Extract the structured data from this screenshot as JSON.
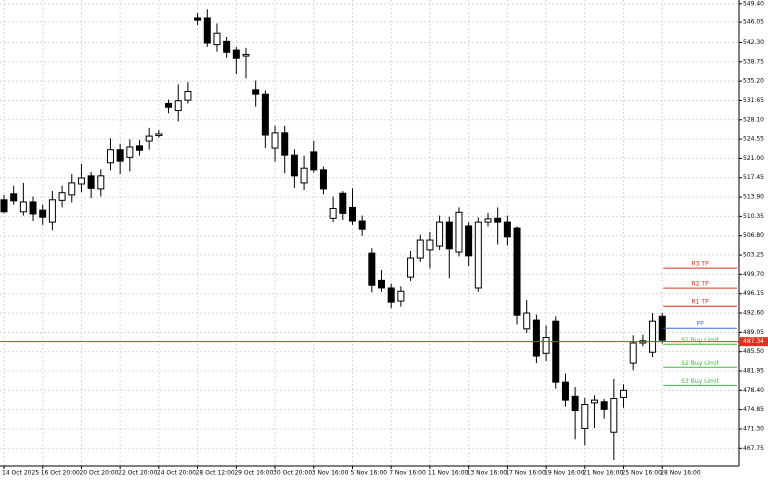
{
  "chart_data": {
    "type": "candlestick",
    "ylim": [
      464.5,
      550.1
    ],
    "yticks": [
      {
        "value": 549.4,
        "label": "549.40"
      },
      546.05,
      {
        "value": 542.3,
        "label": "542.30"
      },
      538.75,
      {
        "value": 535.2,
        "label": "535.20"
      },
      531.65,
      {
        "value": 528.1,
        "label": "528.10"
      },
      524.55,
      {
        "value": 521,
        "label": "521.00"
      },
      517.45,
      {
        "value": 513.9,
        "label": "513.90"
      },
      510.35,
      {
        "value": 506.8,
        "label": "506.80"
      },
      503.25,
      {
        "value": 499.7,
        "label": "499.70"
      },
      496.15,
      {
        "value": 492.6,
        "label": "492.60"
      },
      489.05,
      {
        "value": 485.5,
        "label": "485.50"
      },
      481.95,
      {
        "value": 478.4,
        "label": "478.40"
      },
      474.85,
      {
        "value": 471.3,
        "label": "471.30"
      },
      467.75
    ],
    "grid": true,
    "up_color": "#ffffff",
    "down_color": "#000000",
    "categories": [
      "14 Oct 2025",
      null,
      null,
      null,
      "16 Oct 20:00",
      null,
      null,
      null,
      "20 Oct 20:00",
      null,
      null,
      null,
      "22 Oct 20:00",
      null,
      null,
      null,
      "24 Oct 20:00",
      null,
      null,
      null,
      "28 Oct 12:00",
      null,
      null,
      null,
      "29 Oct 16:00",
      null,
      null,
      null,
      "30 Oct 20:00",
      null,
      null,
      null,
      "3 Nov 16:00",
      null,
      null,
      null,
      "5 Nov 16:00",
      null,
      null,
      null,
      "7 Nov 16:00",
      null,
      null,
      null,
      "11 Nov 16:00",
      null,
      null,
      null,
      "13 Nov 16:00",
      null,
      null,
      null,
      "17 Nov 16:00",
      null,
      null,
      null,
      "19 Nov 16:00",
      null,
      null,
      null,
      "21 Nov 16:00",
      null,
      null,
      null,
      "25 Nov 16:00",
      null,
      null,
      null,
      "28 Nov 16:00"
    ],
    "open": [
      513.4,
      514.5,
      511.2,
      513,
      511.5,
      509.3,
      513.3,
      514.3,
      516.3,
      517.8,
      515.4,
      520.2,
      522.6,
      521.2,
      523.3,
      524.2,
      525.2,
      531.1,
      529.8,
      531.7,
      546.8,
      546.8,
      541.9,
      542.5,
      540.9,
      539.8,
      533.6,
      532.8,
      522.9,
      525.7,
      521.6,
      516.5,
      522.2,
      518.9,
      510,
      514.6,
      512,
      509.5,
      503.6,
      498.6,
      497.2,
      494.8,
      499.2,
      502.7,
      504.2,
      504.9,
      509.3,
      503.8,
      508.6,
      497.2,
      509.3,
      510,
      509.3,
      508.2,
      489.7,
      491.3,
      485.2,
      491.1,
      479.9,
      477.3,
      471.4,
      476.1,
      476.3,
      470.7,
      477.1,
      483.4,
      487.1,
      485.4,
      492
    ],
    "high": [
      514.3,
      516,
      516.5,
      514,
      512.5,
      515,
      516,
      518.1,
      520,
      518.5,
      519,
      524.7,
      523.7,
      524.5,
      524.4,
      526.6,
      526.2,
      531.8,
      534.6,
      535,
      547.7,
      548.4,
      545.8,
      543.3,
      541.5,
      541.3,
      535.3,
      533.5,
      527,
      527,
      522.7,
      521.5,
      524.2,
      519.5,
      514,
      515,
      515.5,
      510.5,
      504.5,
      500.5,
      498,
      497.5,
      504,
      507,
      507.5,
      510.5,
      510.3,
      512,
      509.3,
      510.2,
      511,
      512,
      510.5,
      508.5,
      495,
      492.3,
      490.3,
      492,
      481.5,
      479,
      477,
      477.5,
      476.8,
      480.5,
      479.5,
      488.5,
      488.6,
      492.6,
      492.6
    ],
    "low": [
      510.9,
      512.5,
      510.5,
      509.5,
      508.8,
      507.8,
      512,
      512.9,
      514.8,
      513.7,
      514,
      518.8,
      518.1,
      518.6,
      521.5,
      522.6,
      524.8,
      529.3,
      527.8,
      531.1,
      545.5,
      541.5,
      540.6,
      539.5,
      536.5,
      535.7,
      530.5,
      522.9,
      520.4,
      518.3,
      515.6,
      515.2,
      518.4,
      514.4,
      509.3,
      509.7,
      508.8,
      506.8,
      496.4,
      496.5,
      493.5,
      493.8,
      498.5,
      502,
      500.8,
      504.2,
      499,
      503,
      501.2,
      496.5,
      508.5,
      505.2,
      505,
      490.5,
      488.9,
      483.4,
      483.8,
      478.7,
      475.4,
      469.4,
      468.3,
      471.5,
      473.2,
      465.6,
      475.2,
      482.1,
      486.5,
      484.5,
      487
    ],
    "close": [
      511.2,
      513.2,
      513,
      510.8,
      510.2,
      513.4,
      514.7,
      516.5,
      517.4,
      515.5,
      517.8,
      522.6,
      520.5,
      523.1,
      522.5,
      525.1,
      525.5,
      530.4,
      531.6,
      533.3,
      546.4,
      542.2,
      544,
      540.5,
      539.4,
      540.1,
      532.8,
      525.3,
      525.7,
      521.6,
      517.8,
      519.2,
      518.9,
      515.4,
      511.8,
      510.9,
      509.5,
      508,
      497.7,
      497.2,
      494.6,
      496.6,
      502.7,
      506,
      506,
      509.3,
      504.4,
      511.1,
      503.1,
      509.3,
      509.9,
      509.3,
      506.6,
      492.2,
      492.6,
      484.7,
      488.1,
      479.9,
      476.6,
      474.7,
      475.8,
      476.6,
      474.9,
      476.9,
      478.4,
      487.1,
      487.5,
      491.1,
      487.6
    ],
    "current_price": {
      "value": 487.34,
      "color": "#e0301e"
    },
    "levels": [
      {
        "name": "R3 TP",
        "value": 500.84,
        "color": "#e0301e"
      },
      {
        "name": "R2 TP",
        "value": 497.17,
        "color": "#e0301e"
      },
      {
        "name": "R1 TP",
        "value": 493.85,
        "color": "#e0301e"
      },
      {
        "name": "PP",
        "value": 489.81,
        "color": "#3a6fe0"
      },
      {
        "name": "S1 Buy Limit",
        "value": 486.86,
        "color": "#3cb83c"
      },
      {
        "name": "S2 Buy Limit",
        "value": 482.63,
        "color": "#3cb83c"
      },
      {
        "name": "S3 Buy Limit",
        "value": 479.32,
        "color": "#3cb83c"
      }
    ]
  }
}
